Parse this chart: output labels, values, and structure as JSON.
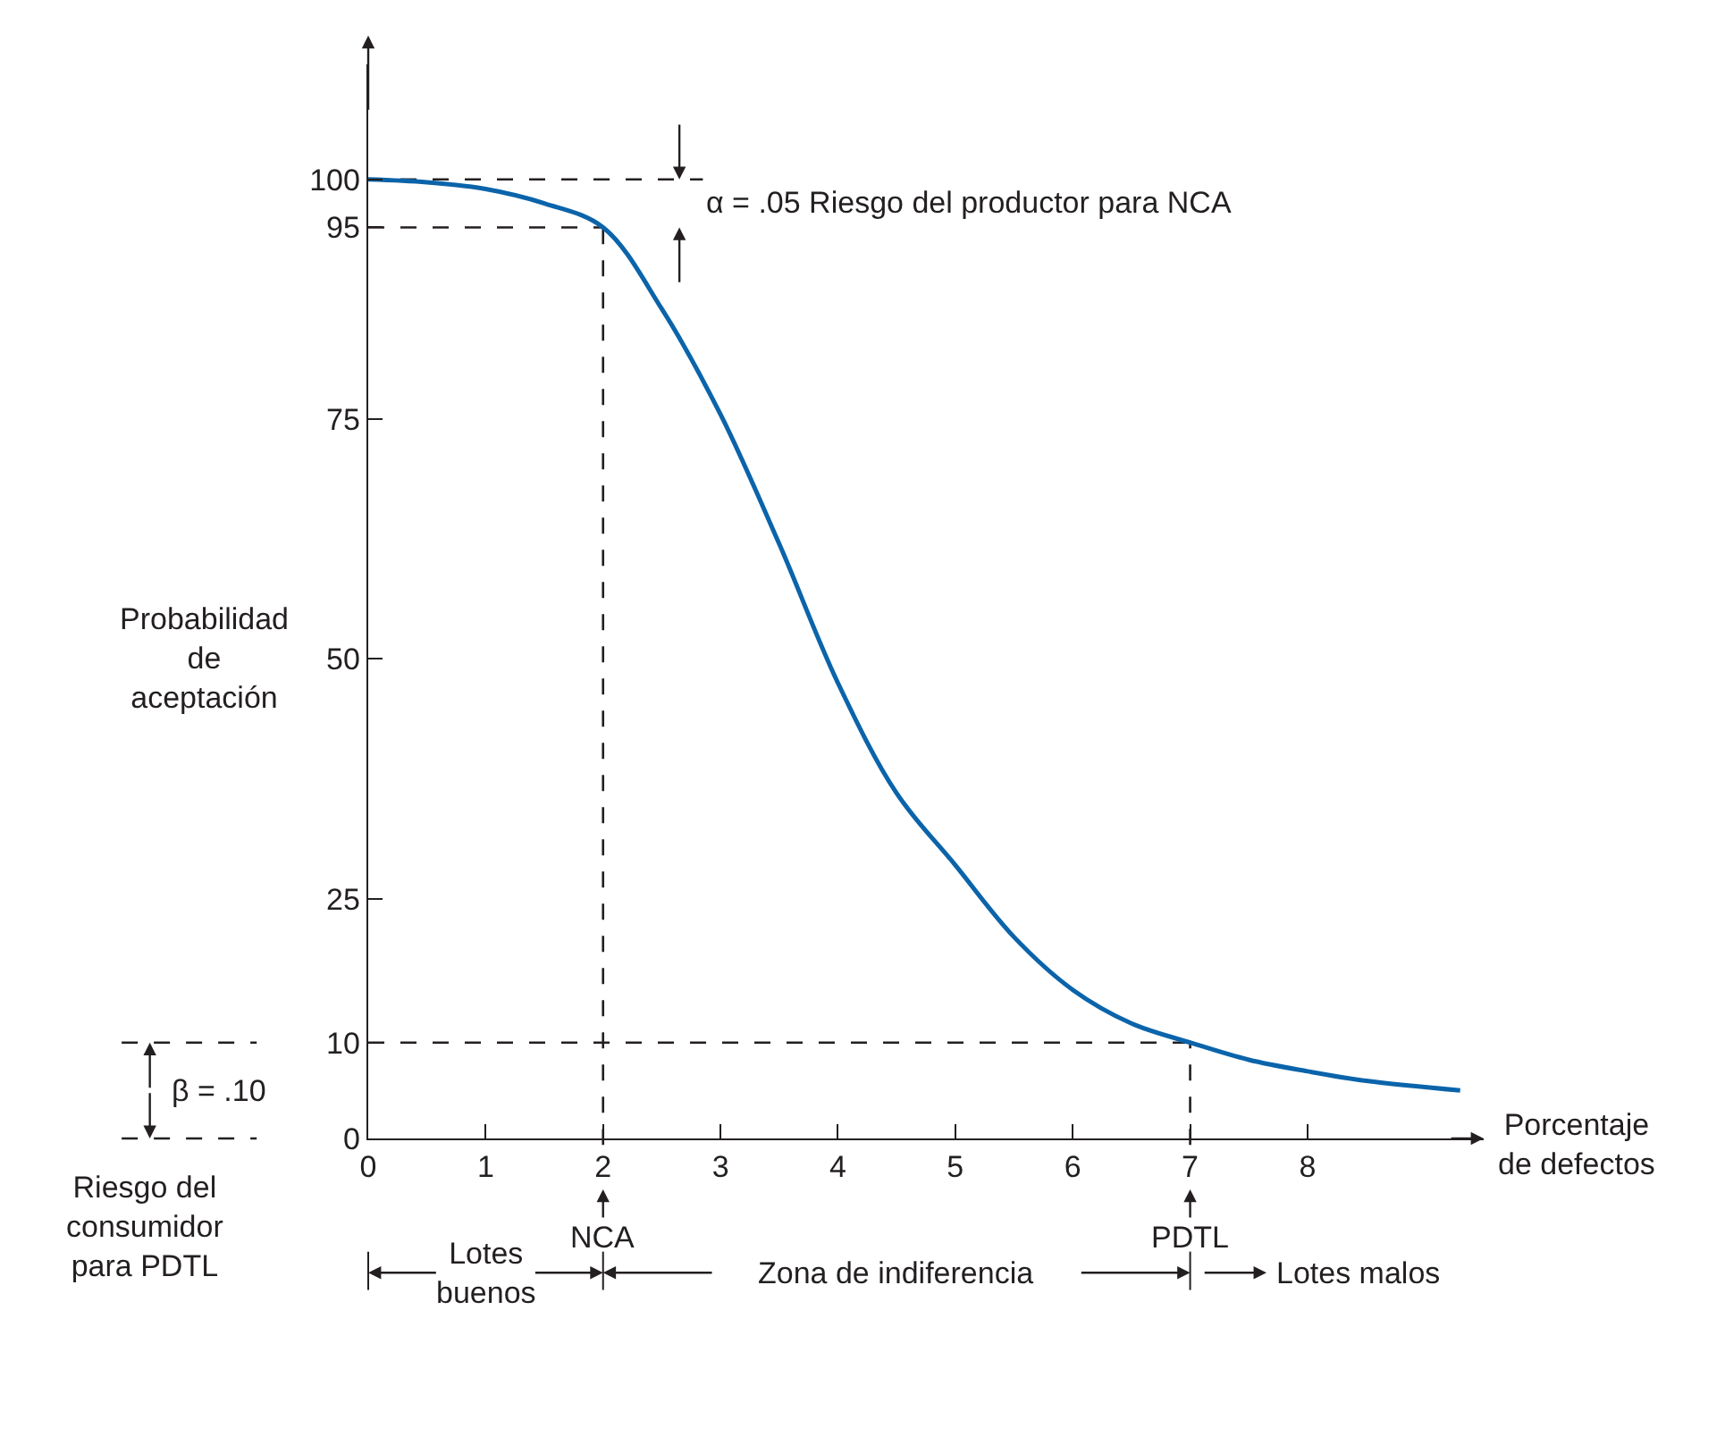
{
  "chart_data": {
    "type": "line",
    "xlabel": "Porcentaje\nde defectos",
    "ylabel": "Probabilidad\nde\naceptación",
    "x": [
      0,
      0.5,
      1,
      1.5,
      2,
      2.5,
      3,
      3.5,
      4,
      4.5,
      5,
      5.5,
      6,
      6.5,
      7,
      7.5,
      8,
      8.5,
      9.3
    ],
    "series": [
      {
        "color": "#0b64aa",
        "values": [
          100,
          99.7,
          99,
          97.5,
          95,
          86.5,
          75.5,
          62,
          47.5,
          36,
          28.5,
          21,
          15.5,
          12,
          10,
          8.2,
          7,
          6,
          5
        ]
      }
    ],
    "xlim": [
      0,
      9.5
    ],
    "ylim": [
      0,
      112
    ],
    "xticks": [
      0,
      1,
      2,
      3,
      4,
      5,
      6,
      7,
      8
    ],
    "yticks": [
      0,
      10,
      25,
      50,
      75,
      95,
      100
    ],
    "grid": false,
    "legend": false,
    "marker": "none",
    "line_style": "solid",
    "ref_lines": [
      {
        "axis": "y",
        "value": 100,
        "line_style": "dashed",
        "color": "#231f20"
      },
      {
        "axis": "y",
        "value": 95,
        "line_style": "dashed",
        "color": "#231f20"
      },
      {
        "axis": "y",
        "value": 10,
        "line_style": "dashed",
        "color": "#231f20"
      },
      {
        "axis": "x",
        "value": 2,
        "line_style": "dashed",
        "color": "#231f20"
      },
      {
        "axis": "x",
        "value": 7,
        "line_style": "dashed",
        "color": "#231f20"
      }
    ],
    "annotations": [
      "α = .05 Riesgo del productor para NCA",
      "β = .10",
      "Riesgo del\nconsumidor\npara PDTL",
      "NCA",
      "PDTL",
      "Lotes\nbuenos",
      "Zona de indiferencia",
      "Lotes malos"
    ]
  }
}
